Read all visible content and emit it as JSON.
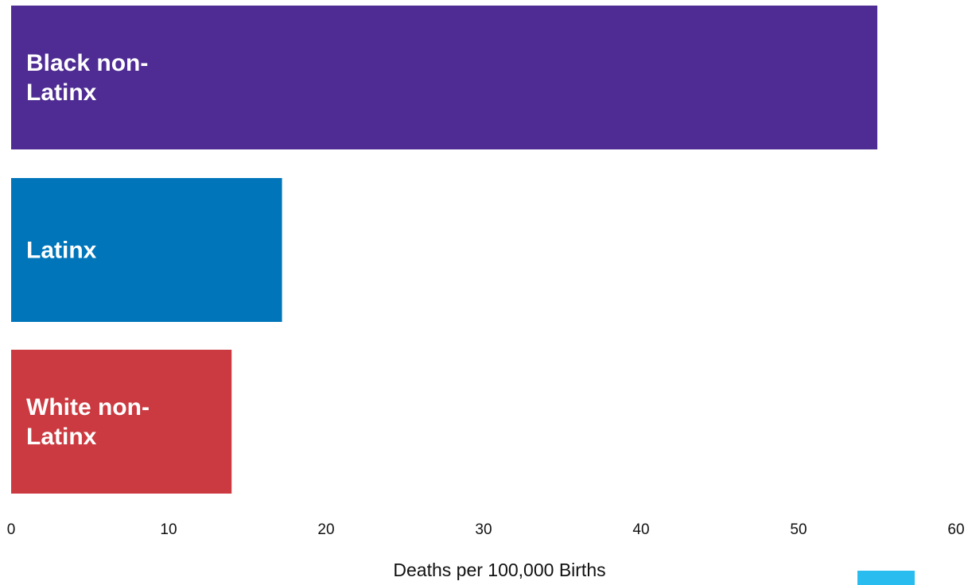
{
  "chart_data": {
    "type": "bar",
    "orientation": "horizontal",
    "categories": [
      [
        "Black non-",
        "Latinx"
      ],
      [
        "Latinx"
      ],
      [
        "White non-",
        "Latinx"
      ]
    ],
    "values": [
      55.0,
      17.2,
      14.0
    ],
    "colors": [
      "#4e2c93",
      "#0075ba",
      "#cb3a40"
    ],
    "xlabel": "Deaths per 100,000 Births",
    "xlim": [
      0,
      60
    ],
    "xticks": [
      0,
      10,
      20,
      30,
      40,
      50,
      60
    ],
    "grid": false,
    "label_color": "#ffffff",
    "legend_swatch_color": "#29bdef"
  }
}
